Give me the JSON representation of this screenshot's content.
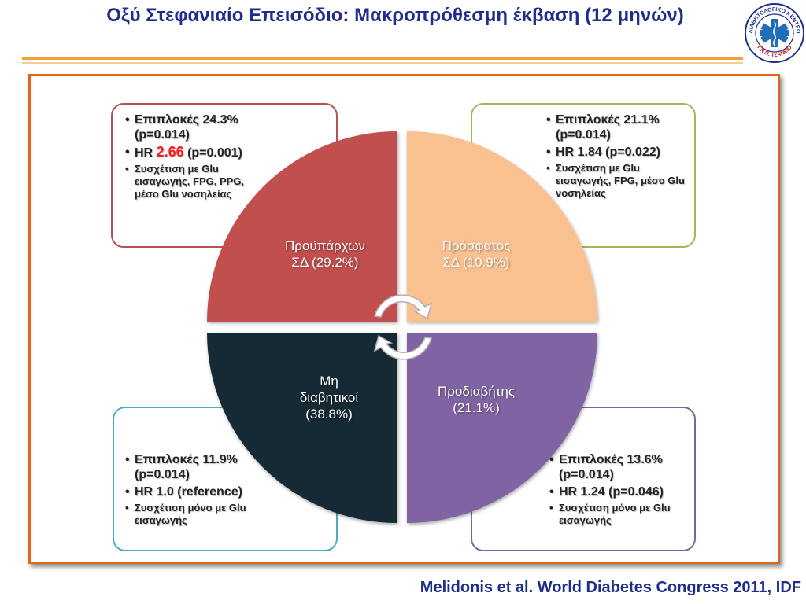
{
  "title": "Οξύ Στεφανιαίο Επεισόδιο: Μακροπρόθεσμη έκβαση (12 μηνών)",
  "logo": {
    "text_top": "ΔΙΑΒΗΤΟΛΟΓΙΚΟ ΚΕΝΤΡΟ",
    "text_bottom": "Γ.Ν.Π. ΤΖΑΝΕΙΟ"
  },
  "quadrants": {
    "top_left": {
      "line1": "Προϋπάρχων",
      "line2": "ΣΔ (29.2%)",
      "color": "#c0504d"
    },
    "top_right": {
      "line1": "Πρόσφατος",
      "line2": "ΣΔ (10.9%)",
      "color": "#f9c090"
    },
    "bottom_left": {
      "line1": "Μη",
      "line2": "διαβητικοί",
      "line3": "(38.8%)",
      "color": "#132b35"
    },
    "bottom_right": {
      "line1": "Προδιαβήτης",
      "line2": "(21.1%)",
      "color": "#8064a2"
    }
  },
  "boxes": {
    "top_left": {
      "complications": "Επιπλοκές 24.3% (p=0.014)",
      "hr_label": "HR",
      "hr_value": "2.66",
      "hr_p": "(p=0.001)",
      "correlation": "Συσχέτιση με Glu εισαγωγής, FPG, PPG, μέσο Glu νοσηλείας"
    },
    "top_right": {
      "complications": "Επιπλοκές 21.1% (p=0.014)",
      "hr": "HR 1.84 (p=0.022)",
      "correlation": "Συσχέτιση με Glu εισαγωγής, FPG, μέσο Glu νοσηλείας"
    },
    "bottom_left": {
      "complications": "Επιπλοκές 11.9% (p=0.014)",
      "hr": "HR 1.0 (reference)",
      "correlation": "Συσχέτιση μόνο με Glu εισαγωγής"
    },
    "bottom_right": {
      "complications": "Επιπλοκές 13.6% (p=0.014)",
      "hr": "HR 1.24 (p=0.046)",
      "correlation": "Συσχέτιση μόνο με Glu εισαγωγής"
    }
  },
  "citation": "Melidonis et al. World Diabetes Congress 2011, IDF"
}
